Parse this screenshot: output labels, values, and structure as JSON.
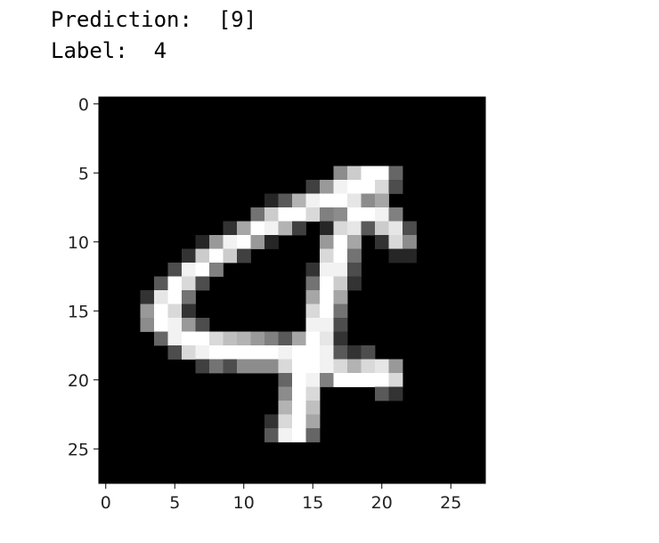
{
  "output": {
    "prediction_label": "Prediction:",
    "prediction_value": "[9]",
    "label_label": "Label:",
    "label_value": "4"
  },
  "chart_data": {
    "type": "heatmap",
    "title": "",
    "colormap": "gray",
    "background": "#000000",
    "rows": 28,
    "cols": 28,
    "xticks": [
      0,
      5,
      10,
      15,
      20,
      25
    ],
    "yticks": [
      0,
      5,
      10,
      15,
      20,
      25
    ],
    "xlabel": "",
    "ylabel": "",
    "pixels": [
      [
        5,
        17,
        0.55
      ],
      [
        5,
        18,
        0.8
      ],
      [
        5,
        19,
        1.0
      ],
      [
        5,
        20,
        1.0
      ],
      [
        5,
        21,
        0.4
      ],
      [
        6,
        15,
        0.25
      ],
      [
        6,
        16,
        0.6
      ],
      [
        6,
        17,
        0.95
      ],
      [
        6,
        18,
        1.0
      ],
      [
        6,
        19,
        1.0
      ],
      [
        6,
        20,
        0.85
      ],
      [
        6,
        21,
        0.3
      ],
      [
        7,
        12,
        0.15
      ],
      [
        7,
        13,
        0.35
      ],
      [
        7,
        14,
        0.7
      ],
      [
        7,
        15,
        0.95
      ],
      [
        7,
        16,
        1.0
      ],
      [
        7,
        17,
        1.0
      ],
      [
        7,
        18,
        0.9
      ],
      [
        7,
        19,
        0.55
      ],
      [
        7,
        20,
        0.65
      ],
      [
        8,
        11,
        0.45
      ],
      [
        8,
        12,
        0.8
      ],
      [
        8,
        13,
        1.0
      ],
      [
        8,
        14,
        1.0
      ],
      [
        8,
        15,
        0.85
      ],
      [
        8,
        16,
        0.5
      ],
      [
        8,
        17,
        0.55
      ],
      [
        8,
        18,
        1.0
      ],
      [
        8,
        19,
        1.0
      ],
      [
        8,
        20,
        0.95
      ],
      [
        8,
        21,
        0.5
      ],
      [
        9,
        9,
        0.2
      ],
      [
        9,
        10,
        0.65
      ],
      [
        9,
        11,
        1.0
      ],
      [
        9,
        12,
        0.95
      ],
      [
        9,
        13,
        0.7
      ],
      [
        9,
        14,
        0.25
      ],
      [
        9,
        16,
        0.15
      ],
      [
        9,
        17,
        0.85
      ],
      [
        9,
        18,
        0.9
      ],
      [
        9,
        19,
        0.35
      ],
      [
        9,
        20,
        0.8
      ],
      [
        9,
        21,
        0.9
      ],
      [
        9,
        22,
        0.3
      ],
      [
        10,
        7,
        0.15
      ],
      [
        10,
        8,
        0.6
      ],
      [
        10,
        9,
        0.95
      ],
      [
        10,
        10,
        1.0
      ],
      [
        10,
        11,
        0.6
      ],
      [
        10,
        12,
        0.15
      ],
      [
        10,
        16,
        0.6
      ],
      [
        10,
        17,
        1.0
      ],
      [
        10,
        18,
        0.65
      ],
      [
        10,
        20,
        0.2
      ],
      [
        10,
        21,
        0.85
      ],
      [
        10,
        22,
        0.55
      ],
      [
        11,
        6,
        0.2
      ],
      [
        11,
        7,
        0.8
      ],
      [
        11,
        8,
        1.0
      ],
      [
        11,
        9,
        0.8
      ],
      [
        11,
        10,
        0.25
      ],
      [
        11,
        16,
        0.85
      ],
      [
        11,
        17,
        1.0
      ],
      [
        11,
        18,
        0.45
      ],
      [
        11,
        21,
        0.15
      ],
      [
        11,
        22,
        0.15
      ],
      [
        12,
        5,
        0.3
      ],
      [
        12,
        6,
        0.95
      ],
      [
        12,
        7,
        1.0
      ],
      [
        12,
        8,
        0.5
      ],
      [
        12,
        15,
        0.2
      ],
      [
        12,
        16,
        0.95
      ],
      [
        12,
        17,
        0.95
      ],
      [
        12,
        18,
        0.3
      ],
      [
        13,
        4,
        0.35
      ],
      [
        13,
        5,
        1.0
      ],
      [
        13,
        6,
        0.85
      ],
      [
        13,
        7,
        0.3
      ],
      [
        13,
        15,
        0.45
      ],
      [
        13,
        16,
        1.0
      ],
      [
        13,
        17,
        0.8
      ],
      [
        13,
        18,
        0.2
      ],
      [
        14,
        3,
        0.2
      ],
      [
        14,
        4,
        0.9
      ],
      [
        14,
        5,
        1.0
      ],
      [
        14,
        6,
        0.45
      ],
      [
        14,
        15,
        0.65
      ],
      [
        14,
        16,
        1.0
      ],
      [
        14,
        17,
        0.65
      ],
      [
        15,
        3,
        0.6
      ],
      [
        15,
        4,
        1.0
      ],
      [
        15,
        5,
        0.85
      ],
      [
        15,
        6,
        0.2
      ],
      [
        15,
        15,
        0.85
      ],
      [
        15,
        16,
        1.0
      ],
      [
        15,
        17,
        0.45
      ],
      [
        16,
        3,
        0.55
      ],
      [
        16,
        4,
        1.0
      ],
      [
        16,
        5,
        0.95
      ],
      [
        16,
        6,
        0.6
      ],
      [
        16,
        7,
        0.3
      ],
      [
        16,
        15,
        0.95
      ],
      [
        16,
        16,
        0.95
      ],
      [
        16,
        17,
        0.3
      ],
      [
        17,
        4,
        0.4
      ],
      [
        17,
        5,
        0.95
      ],
      [
        17,
        6,
        1.0
      ],
      [
        17,
        7,
        1.0
      ],
      [
        17,
        8,
        0.85
      ],
      [
        17,
        9,
        0.75
      ],
      [
        17,
        10,
        0.7
      ],
      [
        17,
        11,
        0.6
      ],
      [
        17,
        12,
        0.5
      ],
      [
        17,
        13,
        0.35
      ],
      [
        17,
        14,
        0.65
      ],
      [
        17,
        15,
        1.0
      ],
      [
        17,
        16,
        0.9
      ],
      [
        17,
        17,
        0.2
      ],
      [
        18,
        5,
        0.3
      ],
      [
        18,
        6,
        0.85
      ],
      [
        18,
        7,
        0.95
      ],
      [
        18,
        8,
        1.0
      ],
      [
        18,
        9,
        1.0
      ],
      [
        18,
        10,
        1.0
      ],
      [
        18,
        11,
        1.0
      ],
      [
        18,
        12,
        1.0
      ],
      [
        18,
        13,
        0.95
      ],
      [
        18,
        14,
        1.0
      ],
      [
        18,
        15,
        1.0
      ],
      [
        18,
        16,
        0.95
      ],
      [
        18,
        17,
        0.35
      ],
      [
        18,
        18,
        0.2
      ],
      [
        18,
        19,
        0.3
      ],
      [
        19,
        7,
        0.25
      ],
      [
        19,
        8,
        0.45
      ],
      [
        19,
        9,
        0.3
      ],
      [
        19,
        10,
        0.55
      ],
      [
        19,
        11,
        0.55
      ],
      [
        19,
        12,
        0.55
      ],
      [
        19,
        13,
        0.85
      ],
      [
        19,
        14,
        1.0
      ],
      [
        19,
        15,
        1.0
      ],
      [
        19,
        16,
        0.95
      ],
      [
        19,
        17,
        0.85
      ],
      [
        19,
        18,
        0.7
      ],
      [
        19,
        19,
        0.85
      ],
      [
        19,
        20,
        0.9
      ],
      [
        19,
        21,
        0.6
      ],
      [
        20,
        13,
        0.4
      ],
      [
        20,
        14,
        1.0
      ],
      [
        20,
        15,
        0.95
      ],
      [
        20,
        16,
        0.5
      ],
      [
        20,
        17,
        1.0
      ],
      [
        20,
        18,
        1.0
      ],
      [
        20,
        19,
        1.0
      ],
      [
        20,
        20,
        1.0
      ],
      [
        20,
        21,
        0.85
      ],
      [
        21,
        13,
        0.55
      ],
      [
        21,
        14,
        1.0
      ],
      [
        21,
        15,
        0.85
      ],
      [
        21,
        20,
        0.35
      ],
      [
        21,
        21,
        0.2
      ],
      [
        22,
        13,
        0.7
      ],
      [
        22,
        14,
        1.0
      ],
      [
        22,
        15,
        0.75
      ],
      [
        23,
        12,
        0.2
      ],
      [
        23,
        13,
        0.85
      ],
      [
        23,
        14,
        1.0
      ],
      [
        23,
        15,
        0.65
      ],
      [
        24,
        12,
        0.35
      ],
      [
        24,
        13,
        0.95
      ],
      [
        24,
        14,
        1.0
      ],
      [
        24,
        15,
        0.4
      ]
    ]
  }
}
